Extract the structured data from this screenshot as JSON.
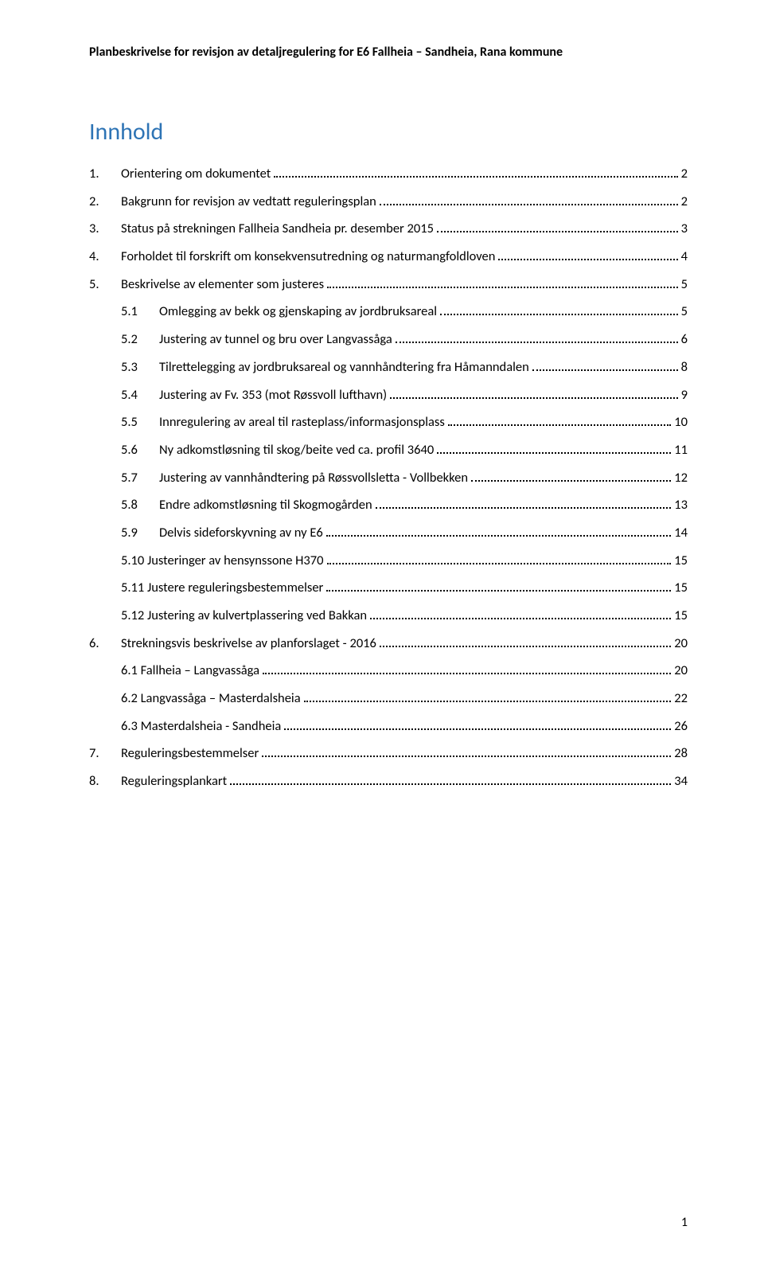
{
  "header_text": "Planbeskrivelse for revisjon av detaljregulering for E6 Fallheia – Sandheia, Rana kommune",
  "toc_title": "Innhold",
  "page_number": "1",
  "entries": [
    {
      "indent": 0,
      "numClass": "w1",
      "num": "1.",
      "label": "Orientering om dokumentet",
      "page": "2"
    },
    {
      "indent": 0,
      "numClass": "w1",
      "num": "2.",
      "label": "Bakgrunn for revisjon av vedtatt reguleringsplan",
      "page": "2"
    },
    {
      "indent": 0,
      "numClass": "w1",
      "num": "3.",
      "label": "Status på strekningen Fallheia Sandheia pr. desember 2015",
      "page": "3"
    },
    {
      "indent": 0,
      "numClass": "w1",
      "num": "4.",
      "label": "Forholdet til forskrift om konsekvensutredning og naturmangfoldloven",
      "page": "4"
    },
    {
      "indent": 0,
      "numClass": "w1",
      "num": "5.",
      "label": "Beskrivelse av elementer som justeres",
      "page": "5"
    },
    {
      "indent": 1,
      "numClass": "w2",
      "num": "5.1",
      "label": "Omlegging av bekk og gjenskaping av jordbruksareal",
      "page": "5"
    },
    {
      "indent": 1,
      "numClass": "w2",
      "num": "5.2",
      "label": "Justering av tunnel og bru over Langvassåga",
      "page": "6"
    },
    {
      "indent": 1,
      "numClass": "w2",
      "num": "5.3",
      "label": "Tilrettelegging av jordbruksareal og vannhåndtering fra Håmanndalen",
      "page": "8"
    },
    {
      "indent": 1,
      "numClass": "w2",
      "num": "5.4",
      "label": "Justering av Fv. 353 (mot Røssvoll lufthavn)",
      "page": "9"
    },
    {
      "indent": 1,
      "numClass": "w2",
      "num": "5.5",
      "label": "Innregulering av areal til rasteplass/informasjonsplass",
      "page": "10"
    },
    {
      "indent": 1,
      "numClass": "w2",
      "num": "5.6",
      "label": "Ny adkomstløsning til skog/beite ved ca. profil 3640",
      "page": "11"
    },
    {
      "indent": 1,
      "numClass": "w2",
      "num": "5.7",
      "label": "Justering av vannhåndtering på Røssvollsletta - Vollbekken",
      "page": "12"
    },
    {
      "indent": 1,
      "numClass": "w2",
      "num": "5.8",
      "label": "Endre adkomstløsning til Skogmogården",
      "page": "13"
    },
    {
      "indent": 1,
      "numClass": "w2",
      "num": "5.9",
      "label": "Delvis sideforskyvning av ny E6",
      "page": "14"
    },
    {
      "indent": 1,
      "numClass": "w2n",
      "num": "",
      "label": "5.10 Justeringer av hensynssone H370",
      "page": "15"
    },
    {
      "indent": 1,
      "numClass": "w2n",
      "num": "",
      "label": "5.11 Justere reguleringsbestemmelser",
      "page": "15"
    },
    {
      "indent": 1,
      "numClass": "w2n",
      "num": "",
      "label": "5.12 Justering av kulvertplassering ved Bakkan",
      "page": "15"
    },
    {
      "indent": 0,
      "numClass": "w1",
      "num": "6.",
      "label": "Strekningsvis beskrivelse av planforslaget - 2016",
      "page": "20"
    },
    {
      "indent": 1,
      "numClass": "w2n",
      "num": "",
      "label": "6.1 Fallheia – Langvassåga",
      "page": "20"
    },
    {
      "indent": 1,
      "numClass": "w2n",
      "num": "",
      "label": "6.2 Langvassåga – Masterdalsheia",
      "page": "22"
    },
    {
      "indent": 1,
      "numClass": "w2n",
      "num": "",
      "label": "6.3 Masterdalsheia - Sandheia",
      "page": "26"
    },
    {
      "indent": 0,
      "numClass": "w1",
      "num": "7.",
      "label": "Reguleringsbestemmelser",
      "page": "28"
    },
    {
      "indent": 0,
      "numClass": "w1",
      "num": "8.",
      "label": "Reguleringsplankart",
      "page": "34"
    }
  ]
}
